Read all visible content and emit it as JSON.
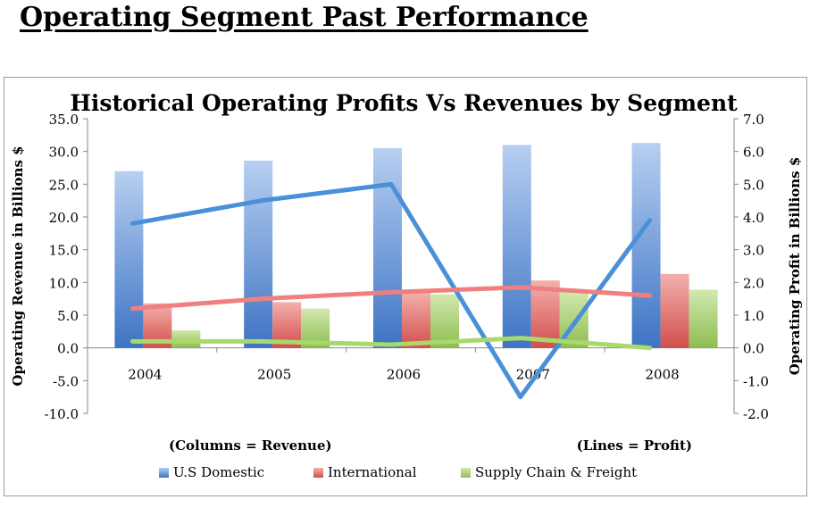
{
  "page": {
    "heading": "Operating Segment Past Performance"
  },
  "chart_data": {
    "type": "bar",
    "title": "Historical Operating Profits Vs Revenues by Segment",
    "categories": [
      "2004",
      "2005",
      "2006",
      "2007",
      "2008"
    ],
    "ylabel": "Operating Revenue in Billions $",
    "y2label": "Operating Profit in Billions $",
    "ylim": [
      -10,
      35
    ],
    "y_ticks": [
      "35.0",
      "30.0",
      "25.0",
      "20.0",
      "15.0",
      "10.0",
      "5.0",
      "0.0",
      "-5.0",
      "-10.0"
    ],
    "y2lim": [
      -2,
      7
    ],
    "y2_ticks": [
      "7.0",
      "6.0",
      "5.0",
      "4.0",
      "3.0",
      "2.0",
      "1.0",
      "0.0",
      "-1.0",
      "-2.0"
    ],
    "grid": false,
    "note_left": "(Columns = Revenue)",
    "note_right": "(Lines = Profit)",
    "legend_position": "bottom",
    "columns": [
      {
        "name": "U.S Domestic",
        "color": "#4f81bd",
        "values": [
          27.0,
          28.6,
          30.5,
          31.0,
          31.3
        ]
      },
      {
        "name": "International",
        "color": "#d9534f",
        "values": [
          6.8,
          7.0,
          8.5,
          10.3,
          11.3
        ]
      },
      {
        "name": "Supply Chain & Freight",
        "color": "#9bbb59",
        "values": [
          2.7,
          6.0,
          8.2,
          8.5,
          8.9
        ]
      }
    ],
    "lines": [
      {
        "name": "U.S Domestic",
        "color": "#4a90d9",
        "values": [
          3.8,
          4.5,
          5.0,
          -1.5,
          3.9
        ]
      },
      {
        "name": "International",
        "color": "#f08080",
        "values": [
          1.2,
          1.5,
          1.7,
          1.85,
          1.6
        ]
      },
      {
        "name": "Supply Chain & Freight",
        "color": "#a8d96a",
        "values": [
          0.2,
          0.2,
          0.1,
          0.3,
          0.0
        ]
      }
    ],
    "legend": [
      "U.S Domestic",
      "International",
      "Supply Chain & Freight"
    ]
  }
}
